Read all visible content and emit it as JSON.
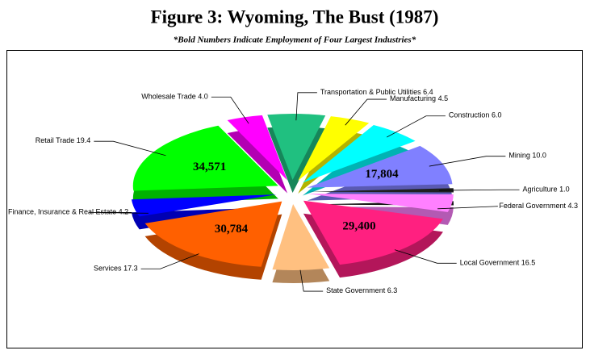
{
  "chart_data": {
    "type": "pie3d",
    "title": "Figure 3:  Wyoming, The Bust (1987)",
    "subtitle": "*Bold Numbers Indicate Employment of Four Largest Industries*",
    "categories": [
      "Transportation & Public Utilities",
      "Manufacturing",
      "Construction",
      "Mining",
      "Agriculture",
      "Federal Government",
      "Local Government",
      "State Government",
      "Services",
      "Finance, Insurance & Real Estate",
      "Retail Trade",
      "Wholesale Trade"
    ],
    "values": [
      6.4,
      4.5,
      6.0,
      10.0,
      1.0,
      4.3,
      16.5,
      6.3,
      17.3,
      4.2,
      19.4,
      4.0
    ],
    "value_labels": [
      "6.4",
      "4.5",
      "6.0",
      "10.0",
      "1.0",
      "4.3",
      "16.5",
      "6.3",
      "17.3",
      "4.2",
      "19.4",
      "4.0"
    ],
    "colors": [
      "#20c080",
      "#ffff00",
      "#00ffff",
      "#8080ff",
      "#202020",
      "#ff80ff",
      "#ff2080",
      "#ffc080",
      "#ff6000",
      "#0000ff",
      "#00ff00",
      "#ff00ff"
    ],
    "employment": [
      null,
      null,
      null,
      {
        "value": 17804,
        "label": "17,804"
      },
      null,
      null,
      {
        "value": 29400,
        "label": "29,400"
      },
      null,
      {
        "value": 30784,
        "label": "30,784"
      },
      null,
      {
        "value": 34571,
        "label": "34,571"
      },
      null
    ]
  }
}
